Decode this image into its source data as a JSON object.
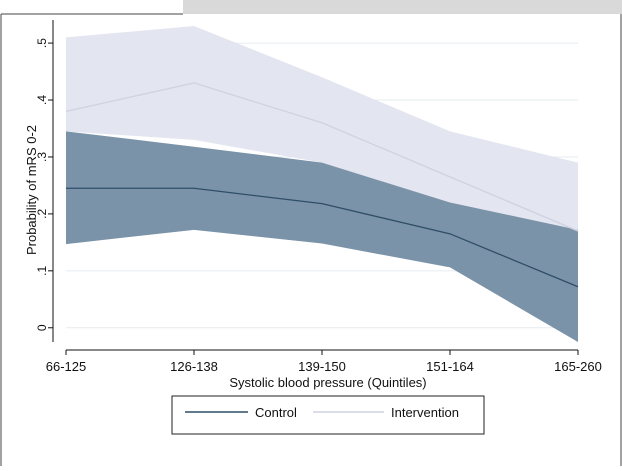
{
  "colors": {
    "page_background": "#ffffff",
    "top_strip": "#d9d9d9",
    "gridline": "#e6ecef",
    "intervention_band": "#e3e5f1",
    "intervention_line": "#cfd3df",
    "control_band": "#7b93a8",
    "control_line": "#2e4e68",
    "axis": "#111111"
  },
  "chart_data": {
    "type": "area",
    "title": "",
    "xlabel": "Systolic blood pressure (Quintiles)",
    "ylabel": "Probability of mRS 0-2",
    "categories": [
      "66-125",
      "126-138",
      "139-150",
      "151-164",
      "165-260"
    ],
    "y_ticks": [
      0,
      0.1,
      0.2,
      0.3,
      0.4,
      0.5
    ],
    "y_tick_labels": [
      "0",
      ".1",
      ".2",
      ".3",
      ".4",
      ".5"
    ],
    "ylim": [
      -0.025,
      0.53
    ],
    "grid": true,
    "legend_position": "bottom",
    "series": [
      {
        "name": "Intervention",
        "values": [
          0.38,
          0.43,
          0.36,
          0.265,
          0.17
        ],
        "lower": [
          0.345,
          0.33,
          0.29,
          0.22,
          0.16
        ],
        "upper": [
          0.51,
          0.53,
          0.44,
          0.345,
          0.29
        ]
      },
      {
        "name": "Control",
        "values": [
          0.245,
          0.245,
          0.218,
          0.165,
          0.072
        ],
        "lower": [
          0.147,
          0.172,
          0.148,
          0.106,
          -0.025
        ],
        "upper": [
          0.345,
          0.318,
          0.29,
          0.22,
          0.172
        ]
      }
    ]
  }
}
